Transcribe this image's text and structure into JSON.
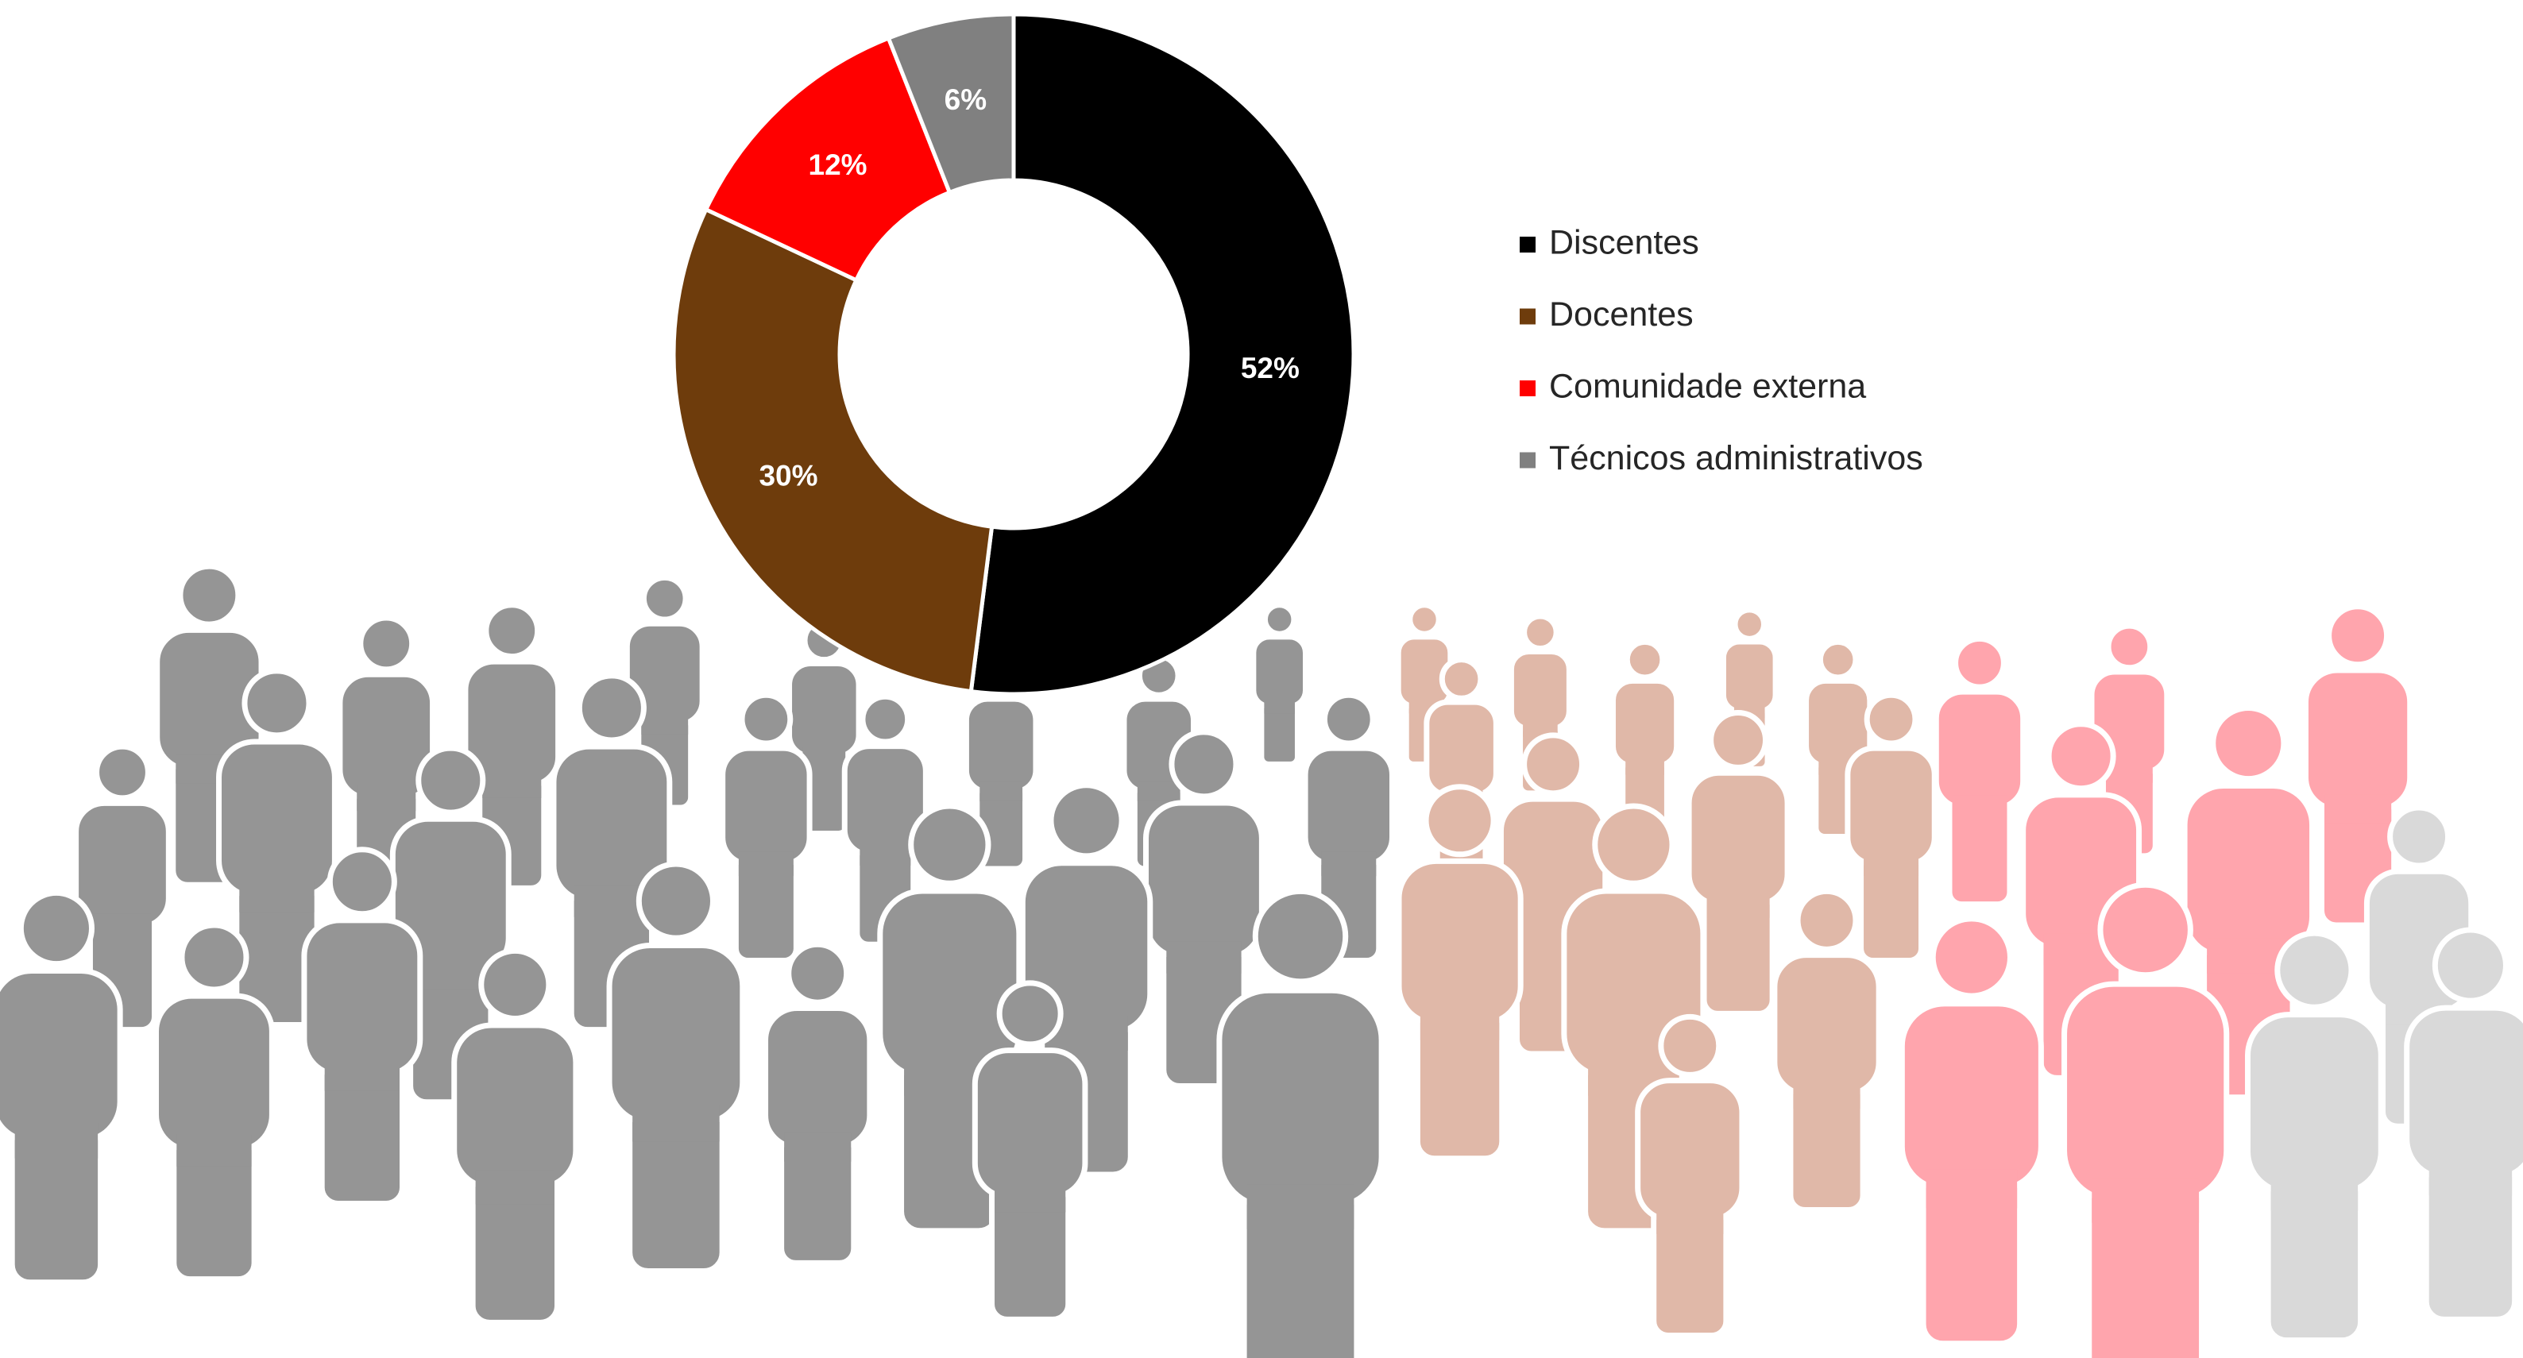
{
  "chart_data": {
    "type": "donut",
    "categories": [
      "Discentes",
      "Docentes",
      "Comunidade externa",
      "Técnicos administrativos"
    ],
    "values": [
      52,
      30,
      12,
      6
    ],
    "value_labels": [
      "52%",
      "30%",
      "12%",
      "6%"
    ],
    "colors": [
      "#000000",
      "#6E3C0C",
      "#FF0000",
      "#808080"
    ],
    "legend": "right"
  }
}
